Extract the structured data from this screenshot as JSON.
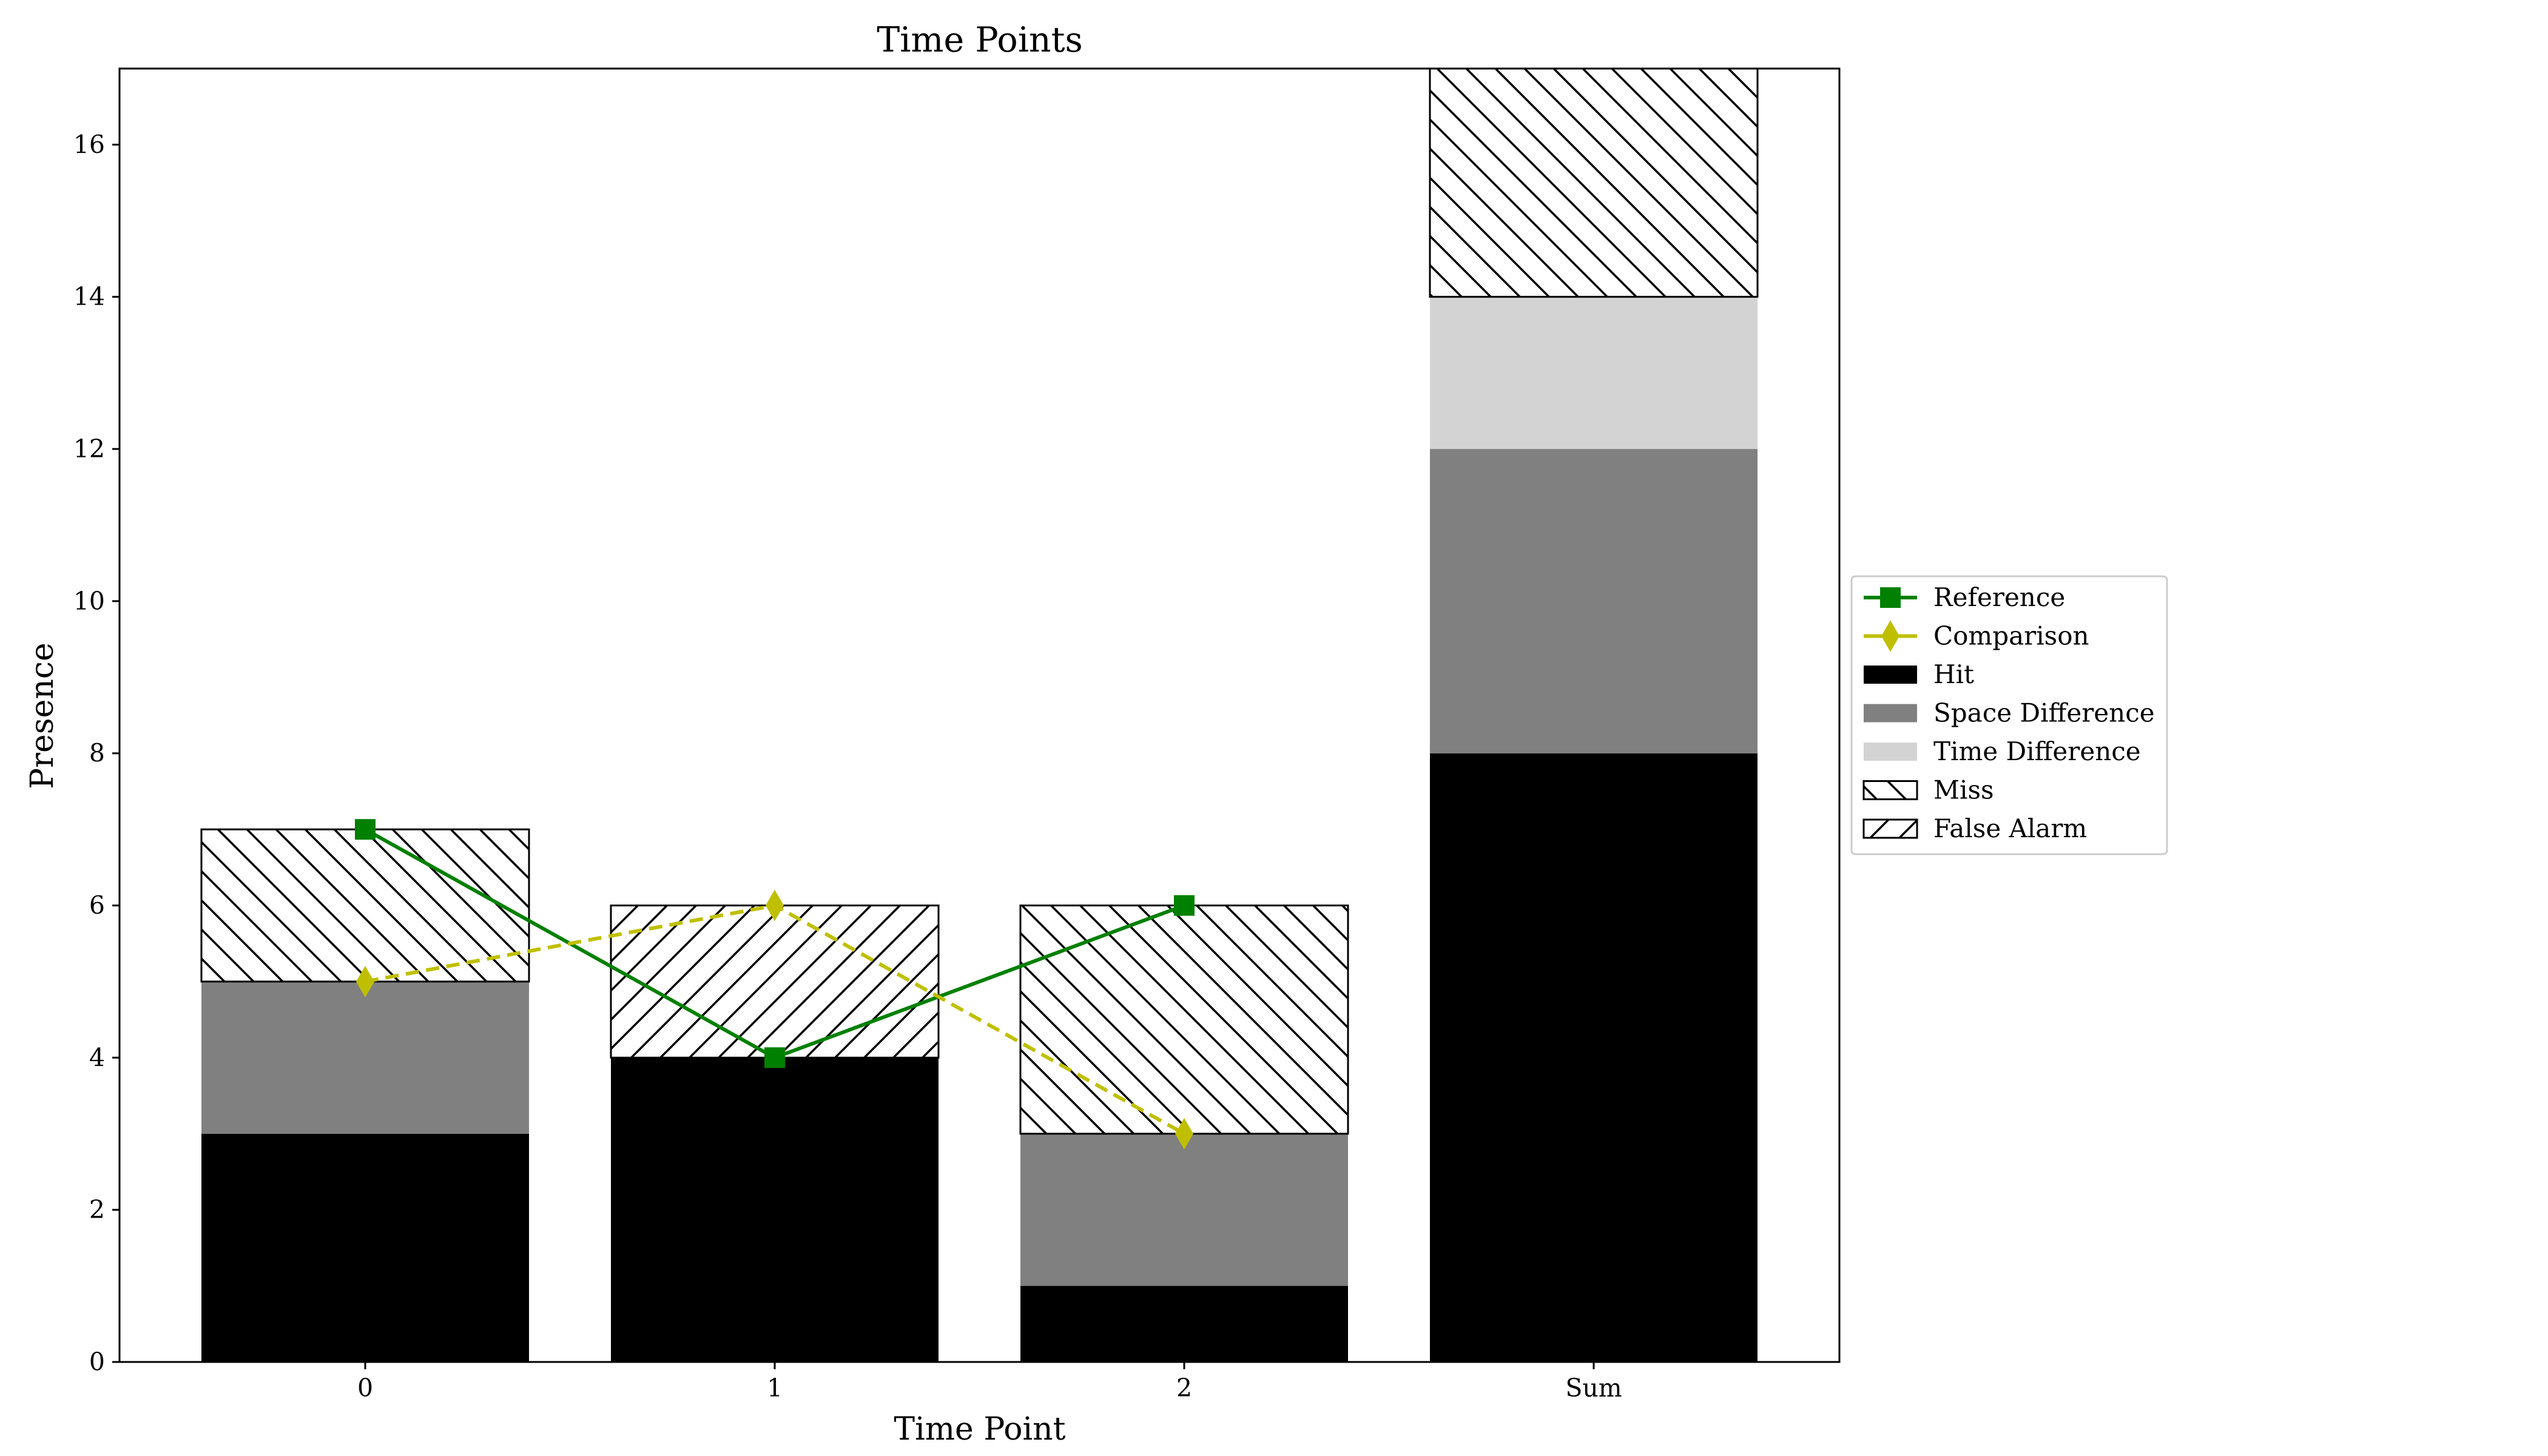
{
  "chart_data": {
    "type": "bar",
    "title": "Time Points",
    "xlabel": "Time Point",
    "ylabel": "Presence",
    "categories": [
      "0",
      "1",
      "2",
      "Sum"
    ],
    "ylim": [
      0,
      17
    ],
    "yticks": [
      0,
      2,
      4,
      6,
      8,
      10,
      12,
      14,
      16
    ],
    "grid": false,
    "legend_position": "right",
    "stacked_series": [
      {
        "name": "Hit",
        "values": [
          3,
          4,
          1,
          8
        ],
        "color": "#000000",
        "hatch": "none"
      },
      {
        "name": "Space Difference",
        "values": [
          2,
          0,
          2,
          4
        ],
        "color": "#808080",
        "hatch": "none"
      },
      {
        "name": "Time Difference",
        "values": [
          0,
          0,
          0,
          2
        ],
        "color": "#d3d3d3",
        "hatch": "none"
      },
      {
        "name": "Miss",
        "values": [
          2,
          0,
          3,
          3
        ],
        "color": "#ffffff",
        "hatch": "backslash"
      },
      {
        "name": "False Alarm",
        "values": [
          0,
          2,
          0,
          0
        ],
        "color": "#ffffff",
        "hatch": "slash"
      }
    ],
    "line_series": [
      {
        "name": "Reference",
        "values": [
          7,
          4,
          6
        ],
        "color": "#008000",
        "marker": "square",
        "style": "solid"
      },
      {
        "name": "Comparison",
        "values": [
          5,
          6,
          3
        ],
        "color": "#bfbf00",
        "marker": "diamond",
        "style": "dashed"
      }
    ],
    "legend": [
      "Reference",
      "Comparison",
      "Hit",
      "Space Difference",
      "Time Difference",
      "Miss",
      "False Alarm"
    ]
  }
}
